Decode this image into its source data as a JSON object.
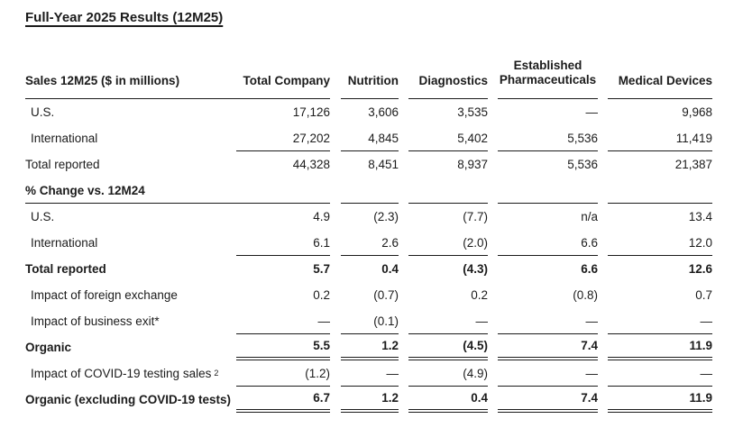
{
  "page": {
    "title": "Full-Year 2025 Results (12M25)"
  },
  "colors": {
    "ink": "#1b1b1b",
    "background": "#ffffff"
  },
  "table": {
    "header": {
      "label": "Sales 12M25 ($ in millions)",
      "total_company": "Total Company",
      "nutrition": "Nutrition",
      "diagnostics": "Diagnostics",
      "established_line1": "Established",
      "established_line2": "Pharmaceuticals",
      "medical_devices": "Medical Devices"
    },
    "section2_header": "% Change vs. 12M24",
    "rows": [
      {
        "label": "U.S.",
        "values": [
          "17,126",
          "3,606",
          "3,535",
          "—",
          "9,968"
        ]
      },
      {
        "label": "International",
        "values": [
          "27,202",
          "4,845",
          "5,402",
          "5,536",
          "11,419"
        ]
      },
      {
        "label": "Total reported",
        "values": [
          "44,328",
          "8,451",
          "8,937",
          "5,536",
          "21,387"
        ]
      },
      {
        "label": "U.S.",
        "values": [
          "4.9",
          "(2.3)",
          "(7.7)",
          "n/a",
          "13.4"
        ]
      },
      {
        "label": "International",
        "values": [
          "6.1",
          "2.6",
          "(2.0)",
          "6.6",
          "12.0"
        ]
      },
      {
        "label": "Total reported",
        "values": [
          "5.7",
          "0.4",
          "(4.3)",
          "6.6",
          "12.6"
        ]
      },
      {
        "label": "Impact of foreign exchange",
        "values": [
          "0.2",
          "(0.7)",
          "0.2",
          "(0.8)",
          "0.7"
        ]
      },
      {
        "label": "Impact of business exit*",
        "values": [
          "—",
          "(0.1)",
          "—",
          "—",
          "—"
        ]
      },
      {
        "label": "Organic",
        "values": [
          "5.5",
          "1.2",
          "(4.5)",
          "7.4",
          "11.9"
        ]
      },
      {
        "label": "Impact of COVID-19 testing sales",
        "sup": "2",
        "values": [
          "(1.2)",
          "—",
          "(4.9)",
          "—",
          "—"
        ]
      },
      {
        "label": "Organic (excluding COVID-19 tests)",
        "values": [
          "6.7",
          "1.2",
          "0.4",
          "7.4",
          "11.9"
        ]
      }
    ]
  }
}
